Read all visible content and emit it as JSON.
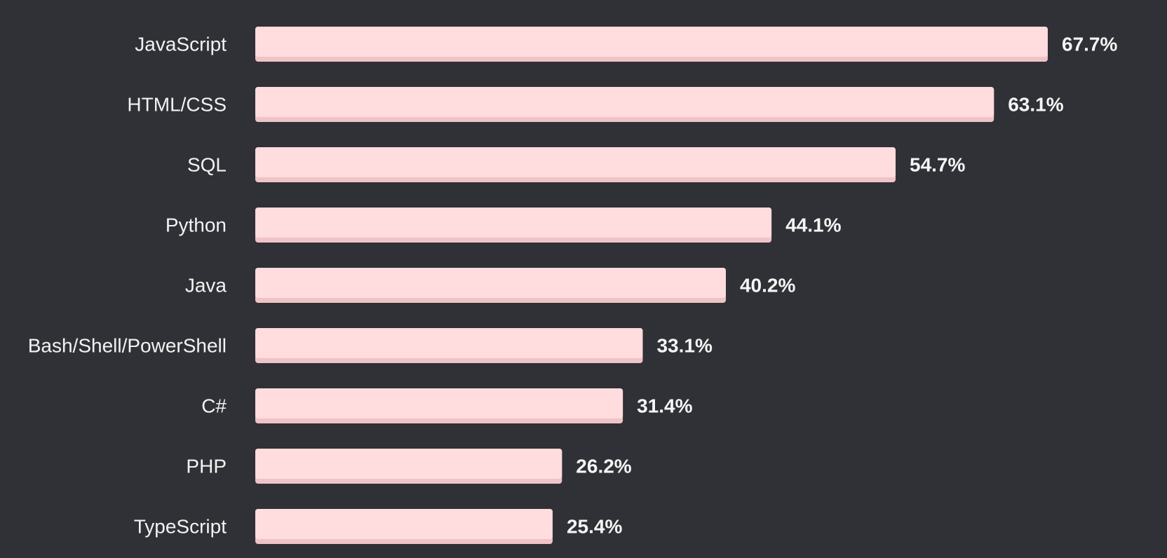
{
  "chart_data": {
    "type": "bar",
    "orientation": "horizontal",
    "categories": [
      "JavaScript",
      "HTML/CSS",
      "SQL",
      "Python",
      "Java",
      "Bash/Shell/PowerShell",
      "C#",
      "PHP",
      "TypeScript"
    ],
    "values": [
      67.7,
      63.1,
      54.7,
      44.1,
      40.2,
      33.1,
      31.4,
      26.2,
      25.4
    ],
    "value_labels": [
      "67.7%",
      "63.1%",
      "54.7%",
      "44.1%",
      "40.2%",
      "33.1%",
      "31.4%",
      "26.2%",
      "25.4%"
    ],
    "unit": "%",
    "xlim": [
      0,
      67.7
    ],
    "grid": false,
    "legend": "none"
  },
  "colors": {
    "background": "#2f3136",
    "bar": "#ffdcdd",
    "bar_shadow": "#efc4c6",
    "category_text": "#f2f2f2",
    "value_text": "#f5f5f5"
  }
}
